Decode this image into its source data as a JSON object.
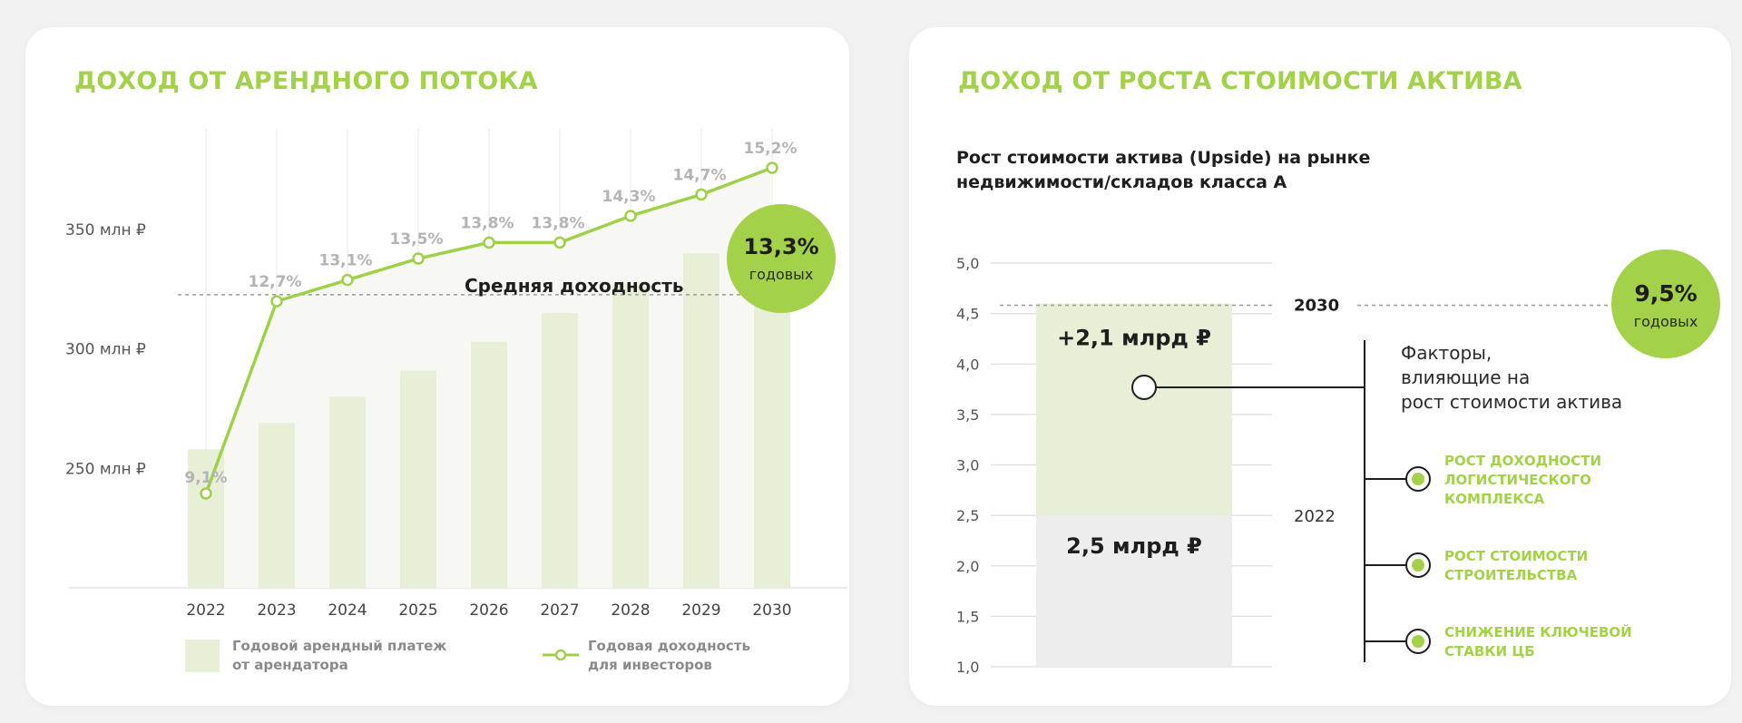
{
  "left_card": {
    "title": "ДОХОД ОТ АРЕНДНОГО ПОТОКА",
    "badge": {
      "value": "13,3%",
      "caption": "годовых"
    },
    "avg_label": "Средняя доходность",
    "legend": {
      "bars": [
        "Годовой арендный платеж",
        "от арендатора"
      ],
      "line": [
        "Годовая доходность",
        "для инвесторов"
      ]
    }
  },
  "right_card": {
    "title": "ДОХОД ОТ РОСТА СТОИМОСТИ АКТИВА",
    "subtitle_lines": [
      "Рост стоимости актива (Upside) на рынке",
      "недвижимости/складов класса А"
    ],
    "badge": {
      "value": "9,5%",
      "caption": "годовых"
    },
    "factors_heading": [
      "Факторы,",
      "влияющие на",
      "рост стоимости актива"
    ],
    "factors": [
      [
        "РОСТ ДОХОДНОСТИ",
        "ЛОГИСТИЧЕСКОГО",
        "КОМПЛЕКСА"
      ],
      [
        "РОСТ СТОИМОСТИ",
        "СТРОИТЕЛЬСТВА"
      ],
      [
        "СНИЖЕНИЕ КЛЮЧЕВОЙ",
        "СТАВКИ ЦБ"
      ]
    ]
  },
  "colors": {
    "accent": "#a3d14a",
    "bar": "#e7efd6",
    "gray_bar": "#ededed",
    "line": "#9fd04a"
  },
  "chart_data": [
    {
      "type": "bar",
      "title": "ДОХОД ОТ АРЕНДНОГО ПОТОКА",
      "categories": [
        "2022",
        "2023",
        "2024",
        "2025",
        "2026",
        "2027",
        "2028",
        "2029",
        "2030"
      ],
      "y_ticks": [
        "250 млн ₽",
        "300 млн ₽",
        "350 млн ₽"
      ],
      "ylim": [
        200,
        380
      ],
      "series": [
        {
          "name": "Годовой арендный платеж от арендатора",
          "type": "bar",
          "values": [
            258,
            269,
            280,
            291,
            303,
            315,
            327,
            340,
            352
          ]
        },
        {
          "name": "Годовая доходность для инвесторов",
          "type": "line",
          "values": [
            9.1,
            12.7,
            13.1,
            13.5,
            13.8,
            13.8,
            14.3,
            14.7,
            15.2
          ],
          "labels": [
            "9,1%",
            "12,7%",
            "13,1%",
            "13,5%",
            "13,8%",
            "13,8%",
            "14,3%",
            "14,7%",
            "15,2%"
          ]
        }
      ],
      "reference_line": {
        "label": "Средняя доходность",
        "value": 13.3,
        "display": "13,3%"
      },
      "grid": "vertical"
    },
    {
      "type": "bar",
      "title": "Рост стоимости актива (Upside) на рынке недвижимости/складов класса А",
      "y_ticks": [
        "1,0",
        "1,5",
        "2,0",
        "2,5",
        "3,0",
        "3,5",
        "4,0",
        "4,5",
        "5,0"
      ],
      "ylim": [
        1.0,
        5.0
      ],
      "segments": [
        {
          "label": "2,5 млрд ₽",
          "marker": "2022",
          "from": 1.0,
          "to": 2.5
        },
        {
          "label": "+2,1 млрд ₽",
          "marker": "2030",
          "from": 2.5,
          "to": 4.6
        }
      ],
      "grid": "horizontal"
    }
  ]
}
